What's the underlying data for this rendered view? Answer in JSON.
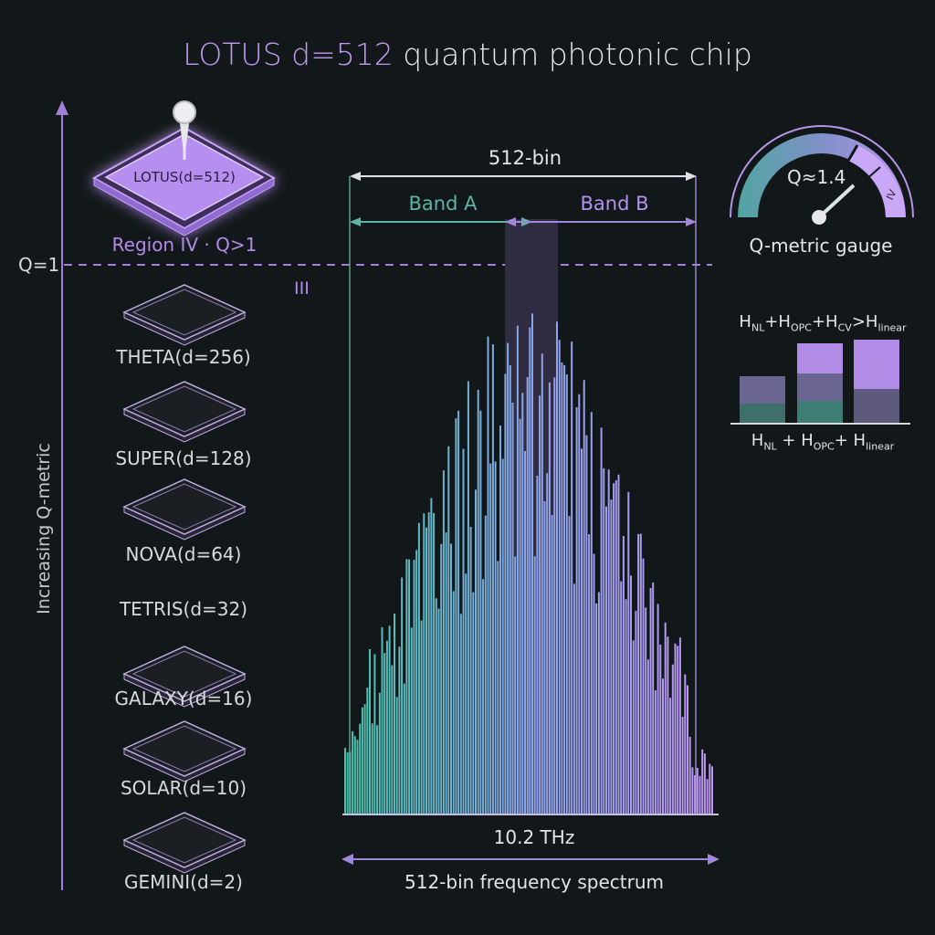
{
  "title": {
    "highlight": "LOTUS d=512",
    "rest": "quantum photonic chip"
  },
  "axis": {
    "label": "Increasing Q-metric",
    "threshold_label": "Q=1"
  },
  "chips": [
    {
      "label": "LOTUS(d=512)",
      "featured": true
    },
    {
      "label": "THETA(d=256)"
    },
    {
      "label": "SUPER(d=128)"
    },
    {
      "label": "NOVA(d=64)"
    },
    {
      "label": "TETRIS(d=32)"
    },
    {
      "label": "GALAXY(d=16)"
    },
    {
      "label": "SOLAR(d=10)"
    },
    {
      "label": "GEMINI(d=2)"
    }
  ],
  "region": {
    "iv_label": "Region IV · Q>1",
    "iii_label": "III"
  },
  "spectrum": {
    "span_label": "512-bin",
    "band_a": "Band A",
    "band_b": "Band B",
    "bandwidth": "10.2 THz",
    "caption": "512-bin frequency spectrum",
    "colors": {
      "start": "#49c2ab",
      "mid": "#8aa5ea",
      "end": "#bf96f2"
    }
  },
  "gauge": {
    "value_label": "Q≈1.4",
    "sector_label": "IV",
    "caption": "Q-metric gauge",
    "value": 1.4
  },
  "entropy": {
    "top": [
      {
        "base": "H",
        "sub": "NL"
      },
      {
        "op": "+"
      },
      {
        "base": "H",
        "sub": "OPC"
      },
      {
        "op": "+"
      },
      {
        "base": "H",
        "sub": "CV"
      },
      {
        "op": ">"
      },
      {
        "base": "H",
        "sub": "linear"
      }
    ],
    "bottom": [
      {
        "base": "H",
        "sub": "NL"
      },
      {
        "op": " + "
      },
      {
        "base": "H",
        "sub": "OPC"
      },
      {
        "op": "+ "
      },
      {
        "base": "H",
        "sub": "linear"
      }
    ],
    "colors": {
      "lavender": "#b08ce6",
      "teal": "#3d7d74",
      "slate": "#6a6591"
    }
  }
}
